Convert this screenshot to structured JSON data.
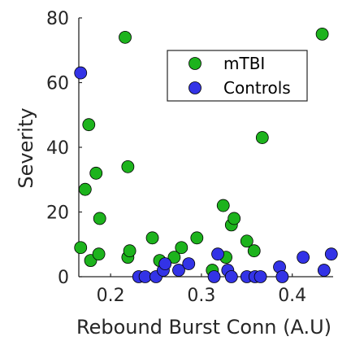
{
  "chart_data": {
    "type": "scatter",
    "title": "",
    "xlabel": "Rebound Burst Conn (A.U)",
    "ylabel": "Severity",
    "xlim": [
      0.165,
      0.445
    ],
    "ylim": [
      0,
      80
    ],
    "xticks": [
      0.2,
      0.3,
      0.4
    ],
    "xtick_labels": [
      "0.2",
      "0.3",
      "0.4"
    ],
    "yticks": [
      0,
      20,
      40,
      60,
      80
    ],
    "ytick_labels": [
      "0",
      "20",
      "40",
      "60",
      "80"
    ],
    "grid": false,
    "legend_position": "top-right",
    "series": [
      {
        "name": "mTBI",
        "color": "#1db31d",
        "points": [
          [
            0.167,
            9
          ],
          [
            0.172,
            27
          ],
          [
            0.176,
            47
          ],
          [
            0.178,
            5
          ],
          [
            0.184,
            32
          ],
          [
            0.187,
            7
          ],
          [
            0.188,
            18
          ],
          [
            0.216,
            74
          ],
          [
            0.219,
            34
          ],
          [
            0.219,
            6
          ],
          [
            0.221,
            8
          ],
          [
            0.246,
            12
          ],
          [
            0.254,
            5
          ],
          [
            0.27,
            6
          ],
          [
            0.278,
            9
          ],
          [
            0.295,
            12
          ],
          [
            0.312,
            2
          ],
          [
            0.324,
            22
          ],
          [
            0.327,
            6
          ],
          [
            0.333,
            16
          ],
          [
            0.336,
            18
          ],
          [
            0.35,
            11
          ],
          [
            0.358,
            8
          ],
          [
            0.367,
            43
          ],
          [
            0.433,
            75
          ]
        ]
      },
      {
        "name": "Controls",
        "color": "#3333e6",
        "points": [
          [
            0.167,
            63
          ],
          [
            0.231,
            0
          ],
          [
            0.238,
            0
          ],
          [
            0.25,
            0
          ],
          [
            0.258,
            2
          ],
          [
            0.26,
            4
          ],
          [
            0.275,
            2
          ],
          [
            0.286,
            4
          ],
          [
            0.314,
            0
          ],
          [
            0.318,
            7
          ],
          [
            0.329,
            2
          ],
          [
            0.333,
            0
          ],
          [
            0.35,
            0
          ],
          [
            0.359,
            0
          ],
          [
            0.365,
            0
          ],
          [
            0.386,
            3
          ],
          [
            0.389,
            0
          ],
          [
            0.412,
            6
          ],
          [
            0.435,
            2
          ],
          [
            0.443,
            7
          ]
        ]
      }
    ]
  }
}
